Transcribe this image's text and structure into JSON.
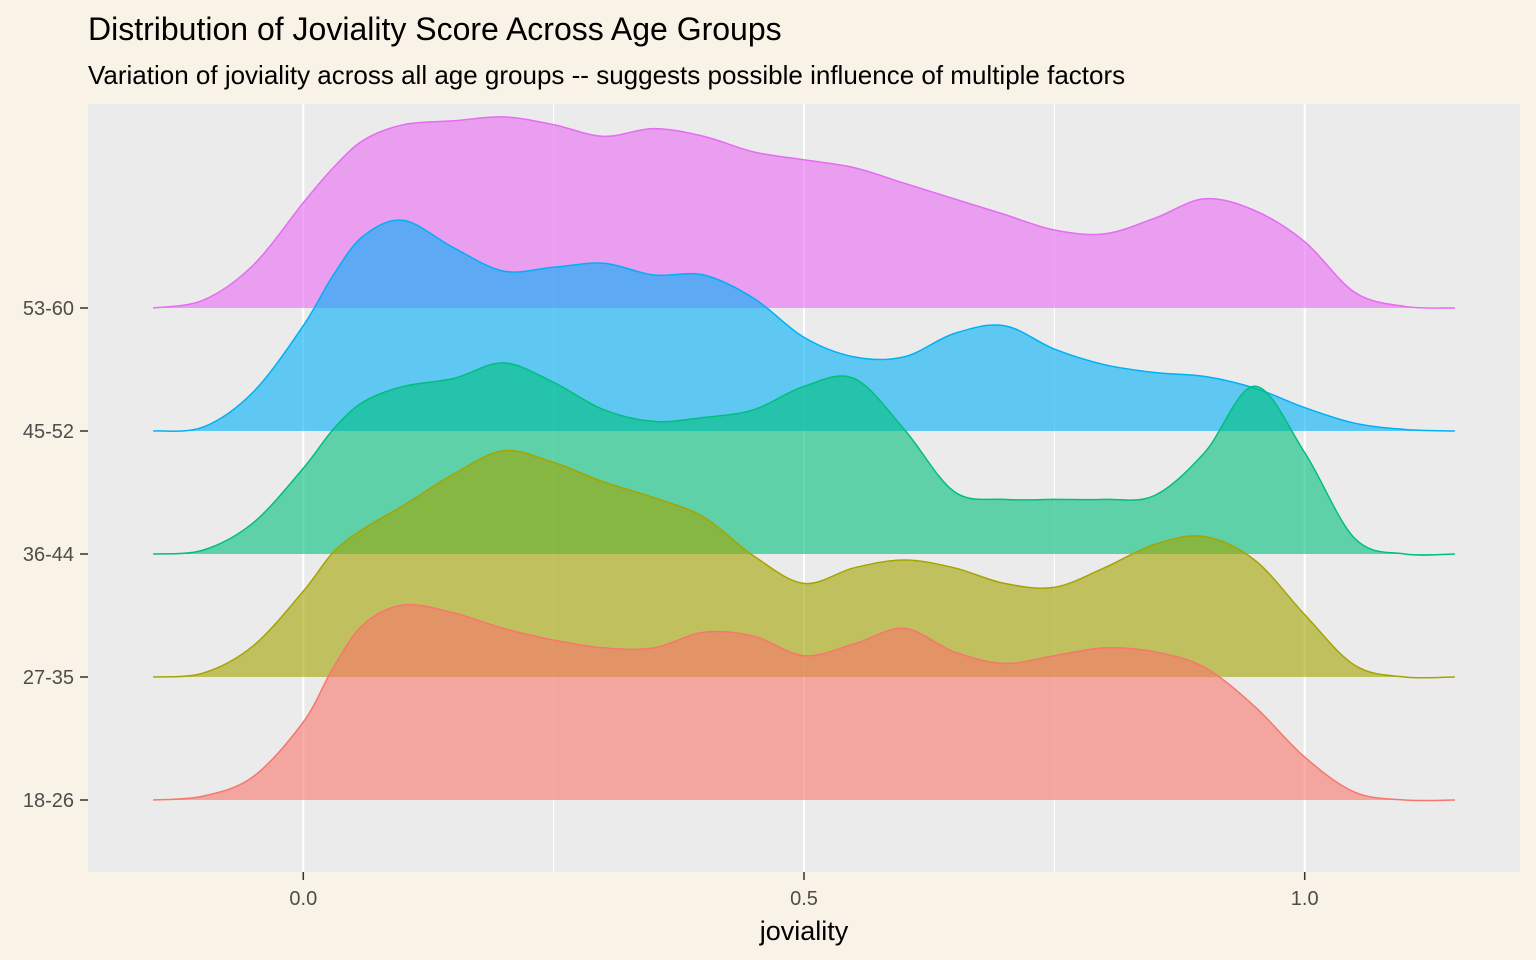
{
  "chart_data": {
    "type": "area",
    "subtype": "ridgeline-density",
    "title": "Distribution of Joviality Score Across Age Groups",
    "subtitle": "Variation of joviality across all age groups -- suggests possible influence of multiple factors",
    "xlabel": "joviality",
    "ylabel": "",
    "xlim": [
      -0.215,
      1.215
    ],
    "x_ticks": [
      0.0,
      0.5,
      1.0
    ],
    "x_tick_labels": [
      "0.0",
      "0.5",
      "1.0"
    ],
    "grid": true,
    "legend": "none",
    "background": "#f9f2e6",
    "panel_background": "#ebebeb",
    "x": [
      -0.15,
      -0.1,
      -0.05,
      0.0,
      0.03,
      0.06,
      0.1,
      0.15,
      0.2,
      0.25,
      0.3,
      0.35,
      0.4,
      0.45,
      0.5,
      0.55,
      0.6,
      0.65,
      0.7,
      0.75,
      0.8,
      0.85,
      0.9,
      0.95,
      1.0,
      1.05,
      1.1,
      1.15
    ],
    "series": [
      {
        "name": "18-26",
        "color": "#f8766d",
        "values": [
          0.0,
          0.05,
          0.3,
          1.0,
          1.7,
          2.25,
          2.5,
          2.4,
          2.2,
          2.05,
          1.95,
          1.95,
          2.15,
          2.1,
          1.85,
          2.0,
          2.2,
          1.9,
          1.75,
          1.85,
          1.95,
          1.9,
          1.7,
          1.2,
          0.55,
          0.1,
          0.0,
          0.0
        ]
      },
      {
        "name": "27-35",
        "color": "#a3a500",
        "values": [
          0.0,
          0.05,
          0.4,
          1.1,
          1.6,
          1.9,
          2.2,
          2.6,
          2.9,
          2.75,
          2.5,
          2.3,
          2.05,
          1.55,
          1.2,
          1.4,
          1.5,
          1.4,
          1.2,
          1.15,
          1.4,
          1.7,
          1.8,
          1.5,
          0.8,
          0.15,
          0.0,
          0.0
        ]
      },
      {
        "name": "36-44",
        "color": "#00bf7d",
        "values": [
          0.0,
          0.05,
          0.4,
          1.1,
          1.6,
          1.95,
          2.15,
          2.25,
          2.45,
          2.2,
          1.85,
          1.7,
          1.75,
          1.85,
          2.15,
          2.25,
          1.6,
          0.8,
          0.7,
          0.7,
          0.7,
          0.75,
          1.3,
          2.15,
          1.3,
          0.2,
          0.0,
          0.0
        ]
      },
      {
        "name": "45-52",
        "color": "#00b0f6",
        "values": [
          0.0,
          0.05,
          0.5,
          1.35,
          2.0,
          2.5,
          2.7,
          2.35,
          2.05,
          2.1,
          2.15,
          2.0,
          2.0,
          1.7,
          1.2,
          0.95,
          0.95,
          1.25,
          1.35,
          1.05,
          0.85,
          0.75,
          0.7,
          0.55,
          0.3,
          0.1,
          0.02,
          0.0
        ]
      },
      {
        "name": "53-60",
        "color": "#e76bf3",
        "values": [
          0.0,
          0.1,
          0.55,
          1.35,
          1.8,
          2.15,
          2.35,
          2.4,
          2.45,
          2.35,
          2.2,
          2.3,
          2.2,
          2.0,
          1.9,
          1.8,
          1.6,
          1.4,
          1.2,
          1.0,
          0.95,
          1.15,
          1.4,
          1.25,
          0.85,
          0.2,
          0.02,
          0.0
        ]
      }
    ]
  },
  "y_tick_labels": [
    "18-26",
    "27-35",
    "36-44",
    "45-52",
    "53-60"
  ]
}
